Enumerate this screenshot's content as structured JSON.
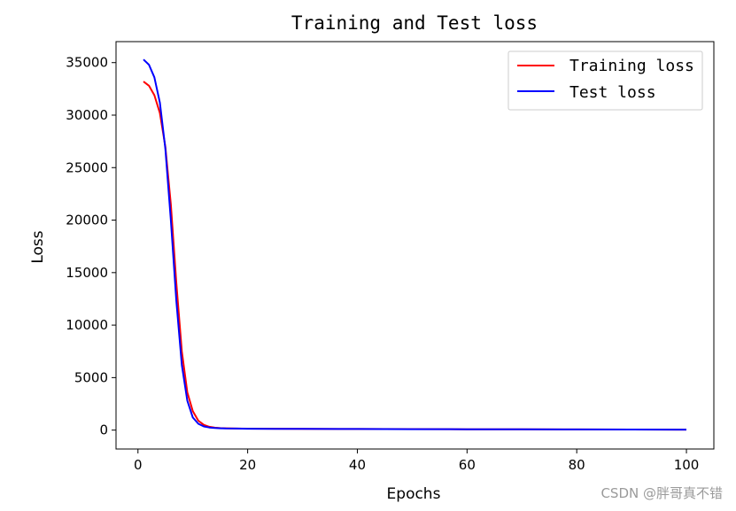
{
  "chart_data": {
    "type": "line",
    "title": "Training and Test loss",
    "xlabel": "Epochs",
    "ylabel": "Loss",
    "xlim": [
      -4,
      105
    ],
    "ylim": [
      -1800,
      37000
    ],
    "xticks": [
      0,
      20,
      40,
      60,
      80,
      100
    ],
    "yticks": [
      0,
      5000,
      10000,
      15000,
      20000,
      25000,
      30000,
      35000
    ],
    "grid": false,
    "legend": "top-right",
    "series": [
      {
        "name": "Training loss",
        "color": "#ff0000",
        "x": [
          1,
          2,
          3,
          4,
          5,
          6,
          7,
          8,
          9,
          10,
          11,
          12,
          13,
          14,
          15,
          16,
          18,
          20,
          25,
          30,
          40,
          50,
          60,
          70,
          80,
          90,
          100
        ],
        "y": [
          33200,
          32800,
          31900,
          30200,
          27000,
          21500,
          14000,
          7500,
          3600,
          1800,
          900,
          500,
          320,
          230,
          190,
          170,
          150,
          140,
          130,
          120,
          110,
          95,
          85,
          75,
          65,
          55,
          50
        ]
      },
      {
        "name": "Test loss",
        "color": "#0000ff",
        "x": [
          1,
          2,
          3,
          4,
          5,
          6,
          7,
          8,
          9,
          10,
          11,
          12,
          13,
          14,
          15,
          16,
          18,
          20,
          25,
          30,
          40,
          50,
          60,
          70,
          80,
          90,
          100
        ],
        "y": [
          35300,
          34800,
          33600,
          31200,
          26800,
          20000,
          12300,
          6200,
          2800,
          1200,
          600,
          350,
          250,
          200,
          175,
          160,
          145,
          135,
          125,
          115,
          105,
          92,
          82,
          72,
          62,
          52,
          45
        ]
      }
    ]
  },
  "watermark": "CSDN @胖哥真不错"
}
